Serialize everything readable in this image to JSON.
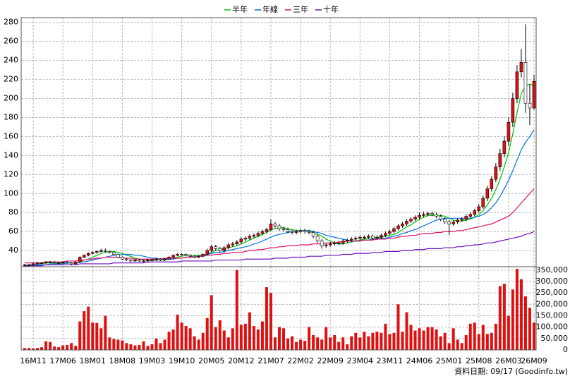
{
  "chart_data": {
    "type": "candlestick",
    "categories": [
      null,
      null,
      "16M11",
      null,
      null,
      null,
      null,
      null,
      null,
      "17M06",
      null,
      null,
      null,
      null,
      null,
      null,
      "18M01",
      null,
      null,
      null,
      null,
      null,
      null,
      "18M08",
      null,
      null,
      null,
      null,
      null,
      null,
      "19M03",
      null,
      null,
      null,
      null,
      null,
      null,
      "19M10",
      null,
      null,
      null,
      null,
      null,
      null,
      "20M05",
      null,
      null,
      null,
      null,
      null,
      null,
      "20M12",
      null,
      null,
      null,
      null,
      null,
      null,
      "21M07",
      null,
      null,
      null,
      null,
      null,
      null,
      "22M02",
      null,
      null,
      null,
      null,
      null,
      null,
      "22M09",
      null,
      null,
      null,
      null,
      null,
      null,
      "23M04",
      null,
      null,
      null,
      null,
      null,
      null,
      "23M11",
      null,
      null,
      null,
      null,
      null,
      null,
      "24M06",
      null,
      null,
      null,
      null,
      null,
      null,
      "25M01",
      null,
      null,
      null,
      null,
      null,
      null,
      "25M08",
      null,
      null,
      null,
      null,
      null,
      null,
      "26M03",
      null,
      null,
      null,
      null,
      null,
      "26M09"
    ],
    "open": [
      24,
      25,
      25,
      26,
      27,
      27,
      28,
      28,
      27,
      27,
      28,
      27,
      26,
      28,
      33,
      35,
      37,
      38,
      39,
      40,
      39,
      38,
      36,
      33,
      31,
      30,
      29,
      30,
      29,
      29,
      30,
      30,
      31,
      30,
      31,
      33,
      35,
      36,
      36,
      35,
      34,
      33,
      34,
      36,
      40,
      44,
      42,
      40,
      43,
      46,
      47,
      49,
      52,
      53,
      55,
      56,
      58,
      60,
      62,
      68,
      66,
      63,
      62,
      60,
      59,
      60,
      61,
      60,
      59,
      55,
      50,
      45,
      46,
      47,
      48,
      48,
      50,
      51,
      52,
      53,
      54,
      54,
      55,
      53,
      54,
      56,
      58,
      60,
      63,
      66,
      68,
      71,
      73,
      75,
      77,
      78,
      79,
      78,
      76,
      73,
      70,
      68,
      70,
      72,
      73,
      76,
      78,
      82,
      86,
      95,
      105,
      115,
      128,
      142,
      155,
      175,
      200,
      228,
      238,
      195,
      190
    ],
    "high": [
      26,
      26,
      27,
      28,
      28,
      29,
      29,
      29,
      28,
      29,
      29,
      28,
      29,
      34,
      36,
      38,
      39,
      40,
      42,
      42,
      40,
      39,
      37,
      34,
      32,
      31,
      31,
      31,
      30,
      31,
      31,
      32,
      32,
      32,
      34,
      36,
      37,
      37,
      37,
      36,
      35,
      35,
      37,
      42,
      46,
      46,
      44,
      45,
      48,
      49,
      51,
      54,
      55,
      57,
      58,
      60,
      62,
      64,
      73,
      70,
      68,
      65,
      64,
      62,
      62,
      63,
      63,
      62,
      61,
      57,
      52,
      48,
      49,
      50,
      50,
      52,
      53,
      54,
      55,
      56,
      56,
      57,
      57,
      56,
      58,
      60,
      62,
      65,
      68,
      70,
      73,
      75,
      77,
      80,
      81,
      81,
      81,
      80,
      78,
      75,
      72,
      72,
      74,
      75,
      78,
      80,
      84,
      89,
      98,
      108,
      118,
      132,
      147,
      160,
      180,
      206,
      235,
      252,
      278,
      215,
      225
    ],
    "low": [
      23,
      24,
      24,
      25,
      26,
      26,
      27,
      26,
      26,
      26,
      26,
      25,
      25,
      27,
      32,
      34,
      36,
      37,
      38,
      38,
      37,
      35,
      32,
      30,
      29,
      28,
      28,
      28,
      28,
      28,
      29,
      29,
      29,
      29,
      30,
      32,
      34,
      35,
      34,
      33,
      32,
      32,
      33,
      35,
      38,
      40,
      38,
      38,
      41,
      44,
      45,
      47,
      50,
      51,
      53,
      54,
      56,
      58,
      60,
      64,
      61,
      60,
      58,
      57,
      57,
      58,
      58,
      57,
      53,
      48,
      42,
      43,
      44,
      45,
      46,
      46,
      48,
      49,
      50,
      51,
      52,
      52,
      51,
      51,
      52,
      54,
      56,
      58,
      61,
      64,
      66,
      69,
      71,
      73,
      75,
      76,
      76,
      74,
      71,
      68,
      56,
      66,
      68,
      70,
      71,
      74,
      76,
      80,
      84,
      92,
      102,
      112,
      124,
      138,
      150,
      170,
      195,
      222,
      185,
      172,
      188
    ],
    "close": [
      25,
      25,
      26,
      27,
      27,
      28,
      28,
      27,
      27,
      28,
      27,
      26,
      28,
      33,
      35,
      37,
      38,
      39,
      40,
      39,
      38,
      36,
      33,
      31,
      30,
      29,
      30,
      29,
      29,
      30,
      30,
      31,
      30,
      31,
      33,
      35,
      36,
      36,
      35,
      34,
      33,
      34,
      36,
      40,
      44,
      42,
      40,
      43,
      46,
      47,
      49,
      52,
      53,
      55,
      56,
      58,
      60,
      62,
      68,
      66,
      63,
      62,
      60,
      59,
      60,
      61,
      60,
      59,
      55,
      50,
      45,
      46,
      47,
      48,
      48,
      50,
      51,
      52,
      53,
      54,
      54,
      55,
      53,
      54,
      56,
      58,
      60,
      63,
      66,
      68,
      71,
      73,
      75,
      77,
      78,
      79,
      78,
      76,
      73,
      70,
      68,
      70,
      72,
      73,
      76,
      78,
      82,
      86,
      95,
      105,
      115,
      128,
      142,
      155,
      175,
      200,
      228,
      238,
      195,
      190,
      218
    ],
    "up_color": "#e01010",
    "down_color": "#ffffff",
    "wick_color": "#000000",
    "ylim": [
      23,
      285
    ],
    "yticks": [
      40,
      60,
      80,
      100,
      120,
      140,
      160,
      180,
      200,
      220,
      240,
      260,
      280
    ],
    "grid": true,
    "series": [
      {
        "name": "半年",
        "color": "#00c000",
        "values": [
          24,
          25,
          25,
          26,
          26,
          27,
          27,
          27,
          27,
          27,
          27,
          27,
          27,
          28,
          30,
          31,
          33,
          35,
          37,
          38,
          39,
          39,
          38,
          37,
          35,
          34,
          32,
          31,
          30,
          30,
          30,
          30,
          30,
          30,
          31,
          32,
          33,
          34,
          35,
          35,
          35,
          35,
          35,
          36,
          38,
          40,
          41,
          42,
          43,
          44,
          45,
          47,
          49,
          51,
          53,
          55,
          57,
          59,
          62,
          63,
          64,
          64,
          63,
          62,
          61,
          61,
          61,
          60,
          59,
          57,
          55,
          52,
          50,
          48,
          47,
          47,
          48,
          49,
          50,
          51,
          52,
          53,
          53,
          54,
          54,
          55,
          56,
          57,
          59,
          62,
          65,
          67,
          70,
          73,
          75,
          77,
          77,
          77,
          77,
          76,
          74,
          72,
          71,
          71,
          72,
          73,
          75,
          78,
          82,
          88,
          95,
          104,
          115,
          128,
          143,
          163,
          185,
          205,
          213,
          215,
          214
        ]
      },
      {
        "name": "年線",
        "color": "#0070e0",
        "values": [
          24,
          24,
          25,
          25,
          25,
          25,
          26,
          26,
          26,
          26,
          27,
          27,
          27,
          28,
          28,
          29,
          30,
          31,
          32,
          33,
          34,
          35,
          35,
          36,
          36,
          36,
          35,
          35,
          34,
          33,
          32,
          32,
          31,
          31,
          31,
          31,
          32,
          32,
          33,
          33,
          34,
          34,
          35,
          36,
          37,
          38,
          38,
          39,
          40,
          41,
          42,
          43,
          44,
          45,
          47,
          48,
          50,
          52,
          54,
          56,
          57,
          58,
          59,
          60,
          60,
          61,
          61,
          61,
          60,
          59,
          58,
          56,
          55,
          54,
          53,
          52,
          51,
          50,
          50,
          50,
          51,
          51,
          52,
          52,
          53,
          53,
          54,
          55,
          56,
          58,
          59,
          61,
          62,
          64,
          66,
          68,
          70,
          72,
          73,
          74,
          74,
          74,
          74,
          74,
          74,
          74,
          75,
          76,
          78,
          81,
          85,
          90,
          97,
          105,
          114,
          124,
          135,
          146,
          154,
          160,
          167
        ]
      },
      {
        "name": "三年",
        "color": "#e0106a",
        "values": [
          27,
          27,
          27,
          27,
          27,
          28,
          28,
          28,
          28,
          28,
          29,
          29,
          29,
          30,
          30,
          31,
          31,
          32,
          32,
          33,
          33,
          33,
          33,
          32,
          32,
          32,
          31,
          31,
          31,
          31,
          31,
          31,
          31,
          32,
          32,
          32,
          32,
          32,
          33,
          33,
          33,
          34,
          34,
          35,
          35,
          36,
          36,
          37,
          37,
          38,
          38,
          38,
          39,
          40,
          40,
          41,
          41,
          42,
          43,
          43,
          44,
          44,
          45,
          45,
          45,
          46,
          46,
          46,
          47,
          47,
          47,
          48,
          48,
          48,
          49,
          49,
          50,
          50,
          50,
          50,
          51,
          51,
          51,
          52,
          52,
          52,
          53,
          53,
          54,
          55,
          55,
          56,
          56,
          57,
          58,
          58,
          58,
          59,
          59,
          60,
          60,
          60,
          61,
          61,
          62,
          63,
          64,
          65,
          66,
          67,
          68,
          70,
          72,
          74,
          76,
          80,
          85,
          90,
          95,
          100,
          105
        ]
      },
      {
        "name": "十年",
        "color": "#6a10c0",
        "values": [
          24,
          24,
          24,
          24,
          24,
          25,
          25,
          25,
          25,
          25,
          25,
          25,
          25,
          26,
          26,
          26,
          26,
          26,
          26,
          26,
          26,
          27,
          27,
          27,
          27,
          27,
          27,
          27,
          27,
          28,
          28,
          28,
          28,
          28,
          28,
          28,
          28,
          29,
          29,
          29,
          29,
          29,
          29,
          29,
          29,
          30,
          30,
          30,
          30,
          30,
          30,
          30,
          31,
          31,
          31,
          31,
          31,
          31,
          31,
          32,
          32,
          32,
          32,
          33,
          33,
          33,
          33,
          34,
          34,
          34,
          34,
          35,
          35,
          35,
          35,
          36,
          36,
          36,
          37,
          37,
          37,
          37,
          38,
          38,
          38,
          39,
          39,
          39,
          39,
          40,
          40,
          40,
          41,
          41,
          41,
          42,
          42,
          42,
          42,
          43,
          43,
          43,
          44,
          44,
          45,
          45,
          46,
          46,
          47,
          48,
          48,
          49,
          50,
          51,
          52,
          53,
          54,
          55,
          57,
          58,
          60
        ]
      }
    ],
    "volume": {
      "color": "#e01010",
      "values": [
        8000,
        9000,
        7000,
        9000,
        12000,
        38000,
        35000,
        15000,
        12000,
        20000,
        22000,
        30000,
        18000,
        125000,
        170000,
        190000,
        120000,
        118000,
        95000,
        150000,
        55000,
        48000,
        45000,
        42000,
        30000,
        25000,
        20000,
        22000,
        38000,
        18000,
        25000,
        50000,
        30000,
        45000,
        80000,
        90000,
        155000,
        120000,
        105000,
        95000,
        60000,
        45000,
        75000,
        140000,
        240000,
        100000,
        130000,
        85000,
        55000,
        95000,
        350000,
        110000,
        115000,
        165000,
        105000,
        90000,
        125000,
        275000,
        250000,
        55000,
        100000,
        95000,
        50000,
        60000,
        35000,
        45000,
        40000,
        100000,
        65000,
        55000,
        45000,
        100000,
        55000,
        65000,
        35000,
        55000,
        25000,
        60000,
        75000,
        55000,
        80000,
        60000,
        75000,
        80000,
        75000,
        115000,
        70000,
        75000,
        200000,
        80000,
        165000,
        110000,
        85000,
        95000,
        85000,
        100000,
        100000,
        90000,
        60000,
        75000,
        30000,
        95000,
        45000,
        30000,
        65000,
        115000,
        120000,
        70000,
        110000,
        70000,
        75000,
        115000,
        280000,
        290000,
        150000,
        265000,
        355000,
        310000,
        235000,
        185000,
        120000
      ],
      "ylim": [
        0,
        365000
      ],
      "yticks": [
        0,
        {
          "value": 50000,
          "label": "50,000"
        },
        {
          "value": 100000,
          "label": "100,000"
        },
        {
          "value": 150000,
          "label": "150,000"
        },
        {
          "value": 200000,
          "label": "200,000"
        },
        {
          "value": 250000,
          "label": "250,000"
        },
        {
          "value": 300000,
          "label": "300,000"
        },
        {
          "value": 350000,
          "label": "350,000"
        }
      ]
    },
    "footnote": "資料日期: 09/17",
    "source": "(Goodinfo.tw)"
  }
}
